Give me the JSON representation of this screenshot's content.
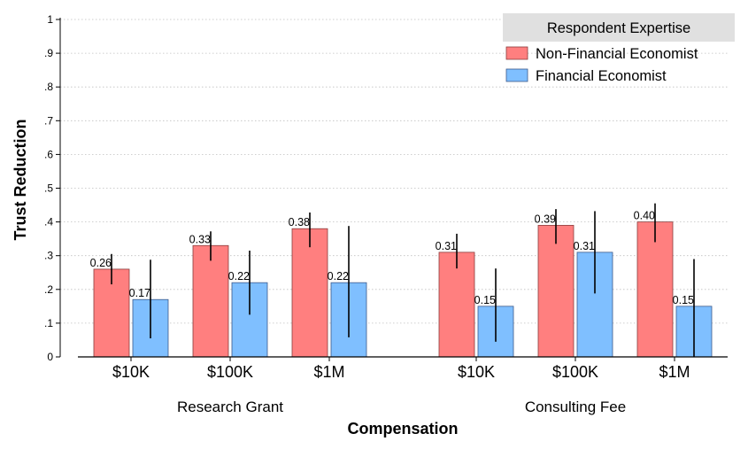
{
  "chart_data": {
    "type": "bar",
    "xlabel": "Compensation",
    "ylabel": "Trust Reduction",
    "ylim": [
      0,
      1
    ],
    "yticks": [
      0,
      0.1,
      0.2,
      0.3,
      0.4,
      0.5,
      0.6,
      0.7,
      0.8,
      0.9,
      1
    ],
    "ytick_labels": [
      "0",
      ".1",
      ".2",
      ".3",
      ".4",
      ".5",
      ".6",
      ".7",
      ".8",
      ".9",
      "1"
    ],
    "grid": true,
    "legend": {
      "title": "Respondent Expertise",
      "position": "top-right"
    },
    "groups": [
      {
        "label": "Research Grant",
        "categories": [
          "$10K",
          "$100K",
          "$1M"
        ]
      },
      {
        "label": "Consulting Fee",
        "categories": [
          "$10K",
          "$100K",
          "$1M"
        ]
      }
    ],
    "series": [
      {
        "name": "Non-Financial Economist",
        "color": "#ff7f7f",
        "values": [
          0.26,
          0.33,
          0.38,
          0.31,
          0.39,
          0.4
        ],
        "labels": [
          "0.26",
          "0.33",
          "0.38",
          "0.31",
          "0.39",
          "0.40"
        ],
        "ci_low": [
          0.215,
          0.285,
          0.325,
          0.262,
          0.335,
          0.34
        ],
        "ci_high": [
          0.305,
          0.372,
          0.428,
          0.365,
          0.438,
          0.455
        ]
      },
      {
        "name": "Financial Economist",
        "color": "#7fbfff",
        "values": [
          0.17,
          0.22,
          0.22,
          0.15,
          0.31,
          0.15
        ],
        "labels": [
          "0.17",
          "0.22",
          "0.22",
          "0.15",
          "0.31",
          "0.15"
        ],
        "ci_low": [
          0.055,
          0.125,
          0.058,
          0.045,
          0.188,
          0.0
        ],
        "ci_high": [
          0.288,
          0.315,
          0.388,
          0.262,
          0.432,
          0.29
        ]
      }
    ]
  }
}
